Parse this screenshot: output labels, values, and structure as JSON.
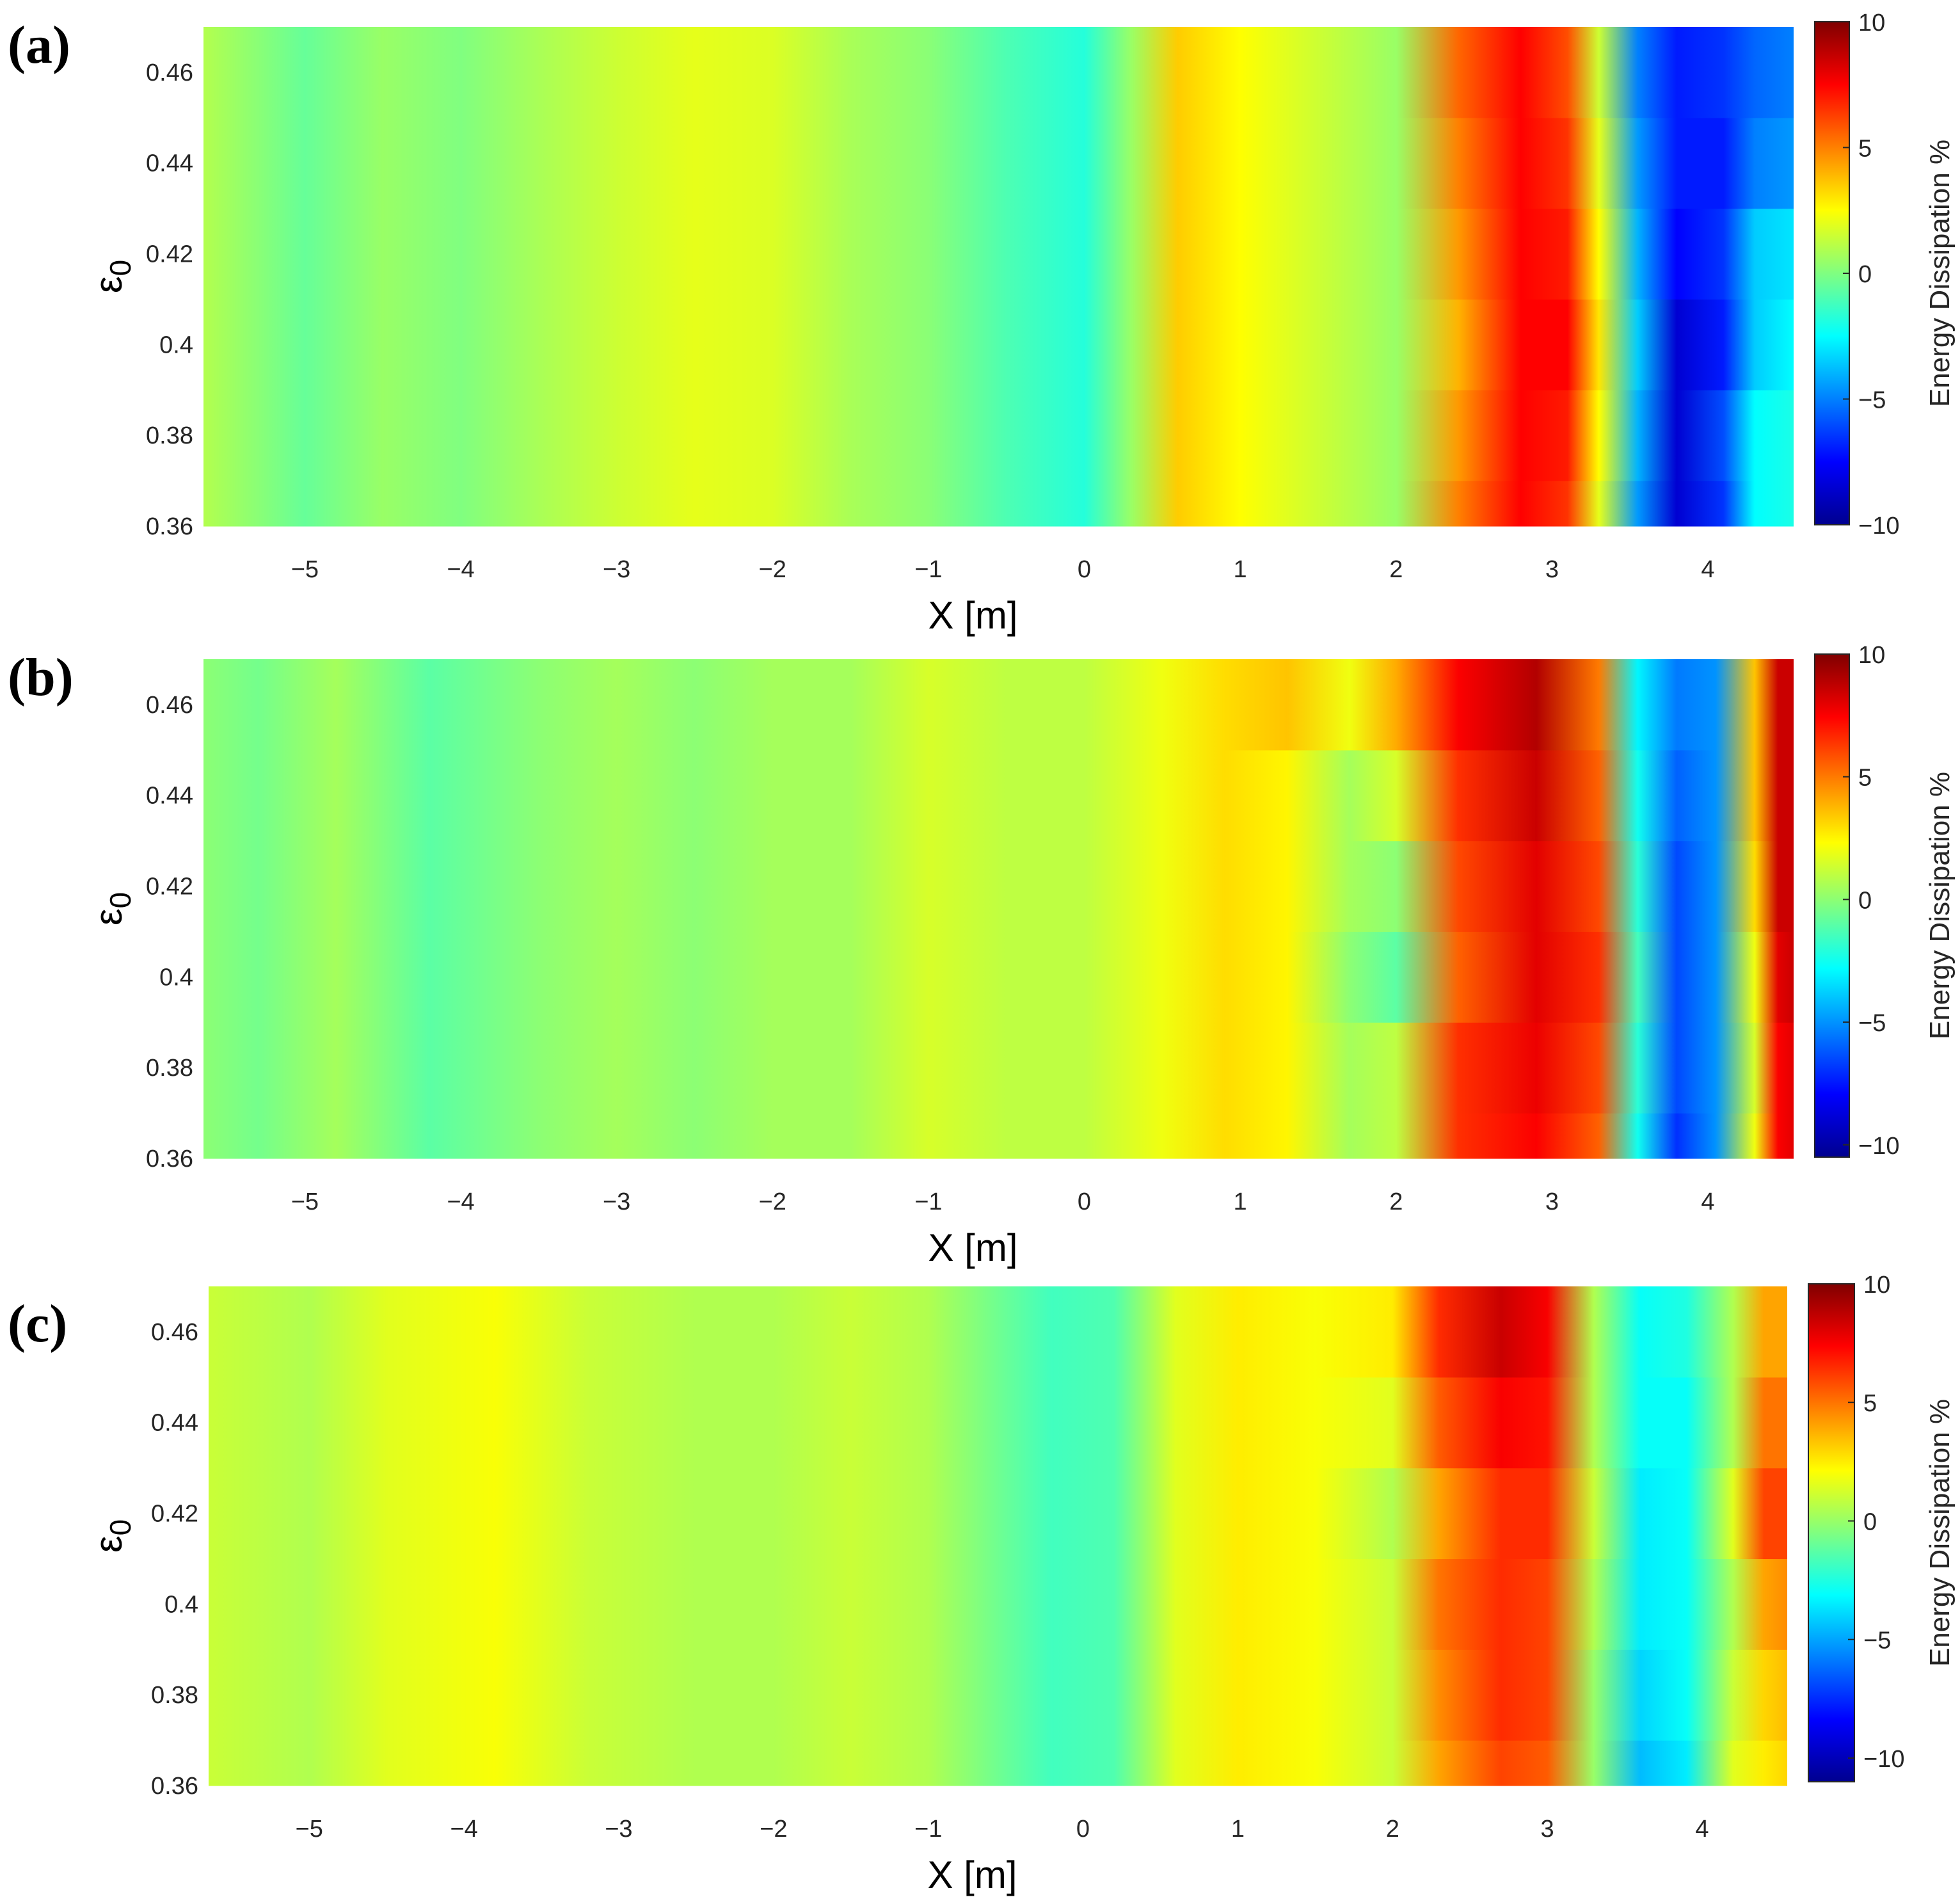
{
  "colors": {
    "jet": [
      "#00008f",
      "#0000ff",
      "#0080ff",
      "#00ffff",
      "#80ff80",
      "#ffff00",
      "#ff8000",
      "#ff0000",
      "#800000"
    ],
    "tick_text": "#262626",
    "frame": "#262626"
  },
  "chart_data": [
    {
      "type": "heatmap",
      "panel_label": "(a)",
      "xlabel": "X [m]",
      "ylabel": "ε",
      "ylabel_sub": "0",
      "xlim": [
        -5.65,
        4.55
      ],
      "ylim": [
        0.36,
        0.47
      ],
      "xticks": [
        -5,
        -4,
        -3,
        -2,
        -1,
        0,
        1,
        2,
        3,
        4
      ],
      "xtick_labels": [
        "−5",
        "−4",
        "−3",
        "−2",
        "−1",
        "0",
        "1",
        "2",
        "3",
        "4"
      ],
      "yticks": [
        0.36,
        0.38,
        0.4,
        0.42,
        0.44,
        0.46
      ],
      "ytick_labels": [
        "0.36",
        "0.38",
        "0.4",
        "0.42",
        "0.44",
        "0.46"
      ],
      "colorbar": {
        "label": "Energy Dissipation %",
        "range": [
          -10,
          10
        ],
        "ticks": [
          -10,
          -5,
          0,
          5,
          10
        ],
        "tick_labels": [
          "−10",
          "−5",
          "0",
          "5",
          "10"
        ]
      },
      "x": [
        -5.65,
        -5.0,
        -4.5,
        -4.0,
        -3.5,
        -3.0,
        -2.5,
        -2.0,
        -1.5,
        -1.0,
        -0.5,
        0.0,
        0.3,
        0.6,
        1.0,
        1.5,
        2.0,
        2.4,
        2.8,
        3.1,
        3.3,
        3.55,
        3.8,
        4.1,
        4.3,
        4.55
      ],
      "y": [
        0.36,
        0.38,
        0.4,
        0.42,
        0.44,
        0.46,
        0.47
      ],
      "z": [
        [
          1.0,
          -0.5,
          0.5,
          0.0,
          0.8,
          1.5,
          2.0,
          1.8,
          0.8,
          0.2,
          -1.0,
          -1.8,
          0.5,
          3.5,
          2.5,
          1.5,
          0.5,
          5.0,
          7.5,
          6.5,
          2.0,
          -4.5,
          -8.5,
          -6.5,
          -2.5,
          -2.0
        ],
        [
          1.0,
          -0.5,
          0.5,
          0.0,
          0.8,
          1.5,
          2.0,
          1.8,
          0.8,
          0.2,
          -1.0,
          -1.8,
          0.5,
          3.5,
          2.5,
          1.5,
          0.5,
          4.5,
          7.5,
          7.0,
          2.5,
          -4.0,
          -8.5,
          -6.0,
          -2.5,
          -2.0
        ],
        [
          1.0,
          -0.5,
          0.5,
          0.0,
          0.8,
          1.5,
          2.0,
          1.8,
          0.8,
          0.2,
          -1.0,
          -1.8,
          0.5,
          3.5,
          2.5,
          1.5,
          0.5,
          4.0,
          7.5,
          7.5,
          3.0,
          -3.5,
          -8.5,
          -7.0,
          -3.5,
          -2.5
        ],
        [
          1.0,
          -0.5,
          0.5,
          0.0,
          0.8,
          1.5,
          2.0,
          1.8,
          0.8,
          0.2,
          -1.0,
          -1.8,
          0.5,
          3.5,
          2.5,
          1.5,
          0.5,
          4.5,
          7.5,
          7.0,
          2.5,
          -4.0,
          -7.5,
          -6.5,
          -3.5,
          -3.0
        ],
        [
          1.0,
          -0.5,
          0.5,
          0.0,
          0.8,
          1.5,
          2.0,
          1.8,
          0.8,
          0.2,
          -1.0,
          -1.8,
          0.5,
          3.5,
          2.5,
          1.5,
          0.5,
          5.0,
          7.5,
          6.5,
          2.0,
          -4.5,
          -7.0,
          -7.0,
          -5.0,
          -4.5
        ],
        [
          1.0,
          -0.5,
          0.5,
          0.0,
          0.8,
          1.5,
          2.0,
          1.8,
          0.8,
          0.2,
          -1.0,
          -1.8,
          0.5,
          3.5,
          2.5,
          1.5,
          0.5,
          5.5,
          7.5,
          6.0,
          1.5,
          -5.0,
          -7.0,
          -6.5,
          -5.5,
          -5.0
        ],
        [
          1.0,
          -0.5,
          0.5,
          0.0,
          0.8,
          1.5,
          2.0,
          1.8,
          0.8,
          0.2,
          -1.0,
          -1.8,
          0.5,
          3.5,
          2.5,
          1.5,
          0.5,
          5.5,
          7.5,
          6.0,
          1.5,
          -5.0,
          -7.0,
          -6.5,
          -5.5,
          -5.0
        ]
      ]
    },
    {
      "type": "heatmap",
      "panel_label": "(b)",
      "xlabel": "X [m]",
      "ylabel": "ε",
      "ylabel_sub": "0",
      "xlim": [
        -5.65,
        4.55
      ],
      "ylim": [
        0.36,
        0.47
      ],
      "xticks": [
        -5,
        -4,
        -3,
        -2,
        -1,
        0,
        1,
        2,
        3,
        4
      ],
      "xtick_labels": [
        "−5",
        "−4",
        "−3",
        "−2",
        "−1",
        "0",
        "1",
        "2",
        "3",
        "4"
      ],
      "yticks": [
        0.36,
        0.38,
        0.4,
        0.42,
        0.44,
        0.46
      ],
      "ytick_labels": [
        "0.36",
        "0.38",
        "0.4",
        "0.42",
        "0.44",
        "0.46"
      ],
      "colorbar": {
        "label": "Energy Dissipation %",
        "range": [
          -10.5,
          10
        ],
        "ticks": [
          -10,
          -5,
          0,
          5,
          10
        ],
        "tick_labels": [
          "−10",
          "−5",
          "0",
          "5",
          "10"
        ]
      },
      "x": [
        -5.65,
        -5.3,
        -4.8,
        -4.2,
        -3.5,
        -3.0,
        -2.5,
        -2.0,
        -1.5,
        -1.0,
        -0.5,
        0.0,
        0.5,
        0.9,
        1.3,
        1.7,
        2.0,
        2.4,
        2.9,
        3.3,
        3.55,
        3.8,
        4.05,
        4.3,
        4.45,
        4.55
      ],
      "y": [
        0.36,
        0.38,
        0.4,
        0.42,
        0.44,
        0.46,
        0.47
      ],
      "z": [
        [
          0.0,
          -0.5,
          0.5,
          -1.0,
          0.0,
          0.5,
          0.0,
          0.5,
          0.5,
          1.5,
          1.0,
          1.0,
          2.0,
          3.0,
          2.5,
          0.5,
          1.0,
          6.5,
          7.5,
          5.5,
          -2.5,
          -7.0,
          -5.0,
          2.0,
          7.5,
          8.0
        ],
        [
          0.0,
          -0.5,
          0.5,
          -1.0,
          0.0,
          0.5,
          0.0,
          0.5,
          0.5,
          1.5,
          1.0,
          1.0,
          2.0,
          3.0,
          2.5,
          0.5,
          1.0,
          6.5,
          7.8,
          6.0,
          -2.0,
          -6.5,
          -5.0,
          1.5,
          7.5,
          8.0
        ],
        [
          0.0,
          -0.5,
          0.5,
          -1.0,
          0.0,
          0.5,
          0.0,
          0.5,
          0.5,
          1.5,
          1.0,
          1.0,
          2.0,
          3.0,
          2.5,
          0.0,
          -1.0,
          5.5,
          8.0,
          6.5,
          -1.5,
          -6.5,
          -5.0,
          2.0,
          8.0,
          8.5
        ],
        [
          0.0,
          -0.5,
          0.5,
          -1.0,
          0.0,
          0.5,
          0.0,
          0.5,
          0.5,
          1.5,
          1.0,
          1.0,
          2.0,
          3.0,
          2.5,
          0.5,
          0.0,
          6.0,
          8.0,
          6.0,
          -2.0,
          -6.5,
          -5.0,
          3.0,
          8.5,
          8.5
        ],
        [
          0.0,
          -0.5,
          0.5,
          -1.0,
          0.0,
          0.5,
          0.0,
          0.5,
          0.5,
          1.5,
          1.0,
          1.0,
          2.0,
          3.0,
          2.5,
          0.5,
          1.5,
          6.5,
          8.5,
          5.5,
          -2.5,
          -6.0,
          -5.0,
          3.5,
          8.5,
          8.5
        ],
        [
          0.0,
          -0.5,
          0.5,
          -1.0,
          0.0,
          0.5,
          0.0,
          0.5,
          0.5,
          1.5,
          1.0,
          1.0,
          2.0,
          3.0,
          3.5,
          2.0,
          4.0,
          7.5,
          9.0,
          5.0,
          -3.0,
          -5.5,
          -5.0,
          3.5,
          8.5,
          8.5
        ],
        [
          0.0,
          -0.5,
          0.5,
          -1.0,
          0.0,
          0.5,
          0.0,
          0.5,
          0.5,
          1.5,
          1.0,
          1.0,
          2.0,
          3.0,
          3.5,
          2.0,
          4.0,
          7.5,
          9.0,
          5.0,
          -3.0,
          -5.5,
          -5.0,
          3.5,
          8.5,
          8.5
        ]
      ]
    },
    {
      "type": "heatmap",
      "panel_label": "(c)",
      "xlabel": "X [m]",
      "ylabel": "ε",
      "ylabel_sub": "0",
      "xlim": [
        -5.65,
        4.55
      ],
      "ylim": [
        0.36,
        0.47
      ],
      "xticks": [
        -5,
        -4,
        -3,
        -2,
        -1,
        0,
        1,
        2,
        3,
        4
      ],
      "xtick_labels": [
        "−5",
        "−4",
        "−3",
        "−2",
        "−1",
        "0",
        "1",
        "2",
        "3",
        "4"
      ],
      "yticks": [
        0.36,
        0.38,
        0.4,
        0.42,
        0.44,
        0.46
      ],
      "ytick_labels": [
        "0.36",
        "0.38",
        "0.4",
        "0.42",
        "0.44",
        "0.46"
      ],
      "colorbar": {
        "label": "Energy Dissipation %",
        "range": [
          -11,
          10
        ],
        "ticks": [
          -10,
          -5,
          0,
          5,
          10
        ],
        "tick_labels": [
          "−10",
          "−5",
          "0",
          "5",
          "10"
        ]
      },
      "x": [
        -5.65,
        -5.0,
        -4.5,
        -3.8,
        -3.2,
        -2.5,
        -2.0,
        -1.5,
        -1.0,
        -0.5,
        -0.2,
        0.2,
        0.6,
        1.0,
        1.5,
        2.0,
        2.3,
        2.7,
        3.0,
        3.3,
        3.6,
        3.9,
        4.2,
        4.4,
        4.55
      ],
      "y": [
        0.36,
        0.38,
        0.4,
        0.42,
        0.44,
        0.46,
        0.47
      ],
      "z": [
        [
          1.0,
          0.5,
          1.5,
          2.0,
          1.0,
          0.5,
          0.5,
          1.0,
          0.5,
          -1.0,
          -1.8,
          -1.5,
          1.5,
          2.5,
          2.0,
          1.0,
          4.0,
          6.0,
          5.5,
          0.0,
          -4.5,
          -3.5,
          1.5,
          2.5,
          3.0
        ],
        [
          1.0,
          0.5,
          1.5,
          2.0,
          1.0,
          0.5,
          0.5,
          1.0,
          0.5,
          -1.0,
          -1.8,
          -1.5,
          1.5,
          2.5,
          2.0,
          1.0,
          4.5,
          6.5,
          6.0,
          0.0,
          -4.0,
          -3.0,
          1.0,
          3.0,
          3.5
        ],
        [
          1.0,
          0.5,
          1.5,
          2.0,
          1.0,
          0.5,
          0.5,
          1.0,
          0.5,
          -1.0,
          -1.8,
          -1.5,
          1.5,
          2.5,
          2.0,
          1.0,
          5.0,
          6.5,
          6.0,
          0.5,
          -3.5,
          -3.0,
          0.5,
          4.0,
          4.5
        ],
        [
          1.0,
          0.5,
          1.5,
          2.0,
          1.0,
          0.5,
          0.5,
          1.0,
          0.5,
          -1.0,
          -1.8,
          -1.5,
          1.5,
          2.5,
          2.0,
          0.5,
          4.0,
          6.5,
          6.5,
          1.0,
          -3.5,
          -3.0,
          1.5,
          6.0,
          6.0
        ],
        [
          1.0,
          0.5,
          1.5,
          2.0,
          1.0,
          0.5,
          0.5,
          1.0,
          0.5,
          -1.0,
          -1.8,
          -1.5,
          1.5,
          2.5,
          2.0,
          1.5,
          5.5,
          7.5,
          7.0,
          0.5,
          -3.0,
          -3.0,
          0.5,
          5.0,
          5.0
        ],
        [
          1.0,
          0.5,
          1.5,
          2.0,
          1.0,
          0.5,
          0.5,
          1.0,
          0.5,
          -1.0,
          -1.8,
          -1.5,
          1.5,
          2.5,
          2.0,
          2.5,
          6.5,
          8.5,
          7.5,
          0.5,
          -3.0,
          -2.5,
          0.5,
          4.0,
          4.0
        ],
        [
          1.0,
          0.5,
          1.5,
          2.0,
          1.0,
          0.5,
          0.5,
          1.0,
          0.5,
          -1.0,
          -1.8,
          -1.5,
          1.5,
          2.5,
          2.0,
          2.5,
          6.5,
          8.5,
          7.5,
          0.5,
          -3.0,
          -2.5,
          0.5,
          4.0,
          4.0
        ]
      ]
    }
  ]
}
